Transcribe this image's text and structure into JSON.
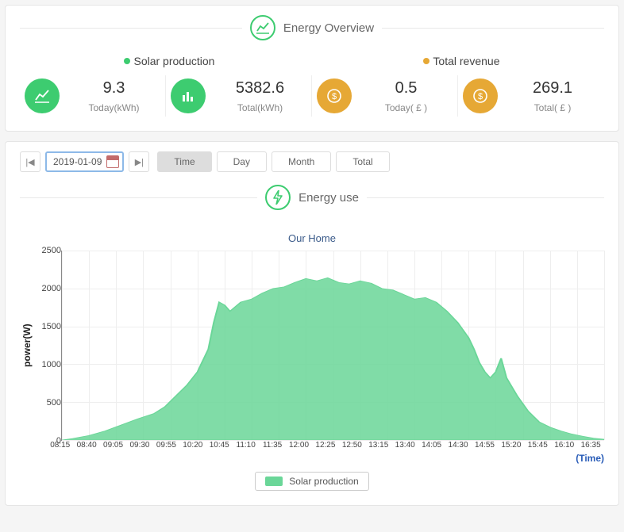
{
  "overview": {
    "title": "Energy Overview",
    "solar_label": "Solar production",
    "revenue_label": "Total revenue",
    "metrics": [
      {
        "value": "9.3",
        "label": "Today(kWh)",
        "color": "green",
        "icon": "chart-up"
      },
      {
        "value": "5382.6",
        "label": "Total(kWh)",
        "color": "green",
        "icon": "bars"
      },
      {
        "value": "0.5",
        "label": "Today( £ )",
        "color": "orange",
        "icon": "dollar"
      },
      {
        "value": "269.1",
        "label": "Total( £ )",
        "color": "orange",
        "icon": "dollar"
      }
    ]
  },
  "controls": {
    "date": "2019-01-09",
    "tabs": {
      "time": "Time",
      "day": "Day",
      "month": "Month",
      "total": "Total"
    },
    "active_tab": "time"
  },
  "energy_use": {
    "title": "Energy use",
    "chart_title": "Our Home",
    "y_axis_label": "power(W)",
    "x_axis_suffix": "(Time)",
    "legend_label": "Solar production",
    "chart": {
      "type": "area",
      "ylim": [
        0,
        2500
      ],
      "ytick_step": 500,
      "yticks": [
        0,
        500,
        1000,
        1500,
        2000,
        2500
      ],
      "xticks": [
        "08:15",
        "08:40",
        "09:05",
        "09:30",
        "09:55",
        "10:20",
        "10:45",
        "11:10",
        "11:35",
        "12:00",
        "12:25",
        "12:50",
        "13:15",
        "13:40",
        "14:05",
        "14:30",
        "14:55",
        "15:20",
        "15:45",
        "16:10",
        "16:35"
      ],
      "series_color": "#6ad698",
      "fill_opacity": 0.85,
      "grid_color": "#eeeeee",
      "axis_color": "#888888",
      "background_color": "#ffffff",
      "tick_fontsize": 10,
      "title_color": "#3b5b8a",
      "data": [
        [
          0,
          0
        ],
        [
          2,
          20
        ],
        [
          5,
          60
        ],
        [
          8,
          120
        ],
        [
          11,
          200
        ],
        [
          14,
          280
        ],
        [
          17,
          350
        ],
        [
          19,
          440
        ],
        [
          21,
          580
        ],
        [
          23,
          720
        ],
        [
          25,
          900
        ],
        [
          27,
          1200
        ],
        [
          28,
          1550
        ],
        [
          29,
          1820
        ],
        [
          30,
          1780
        ],
        [
          31,
          1700
        ],
        [
          33,
          1820
        ],
        [
          35,
          1860
        ],
        [
          37,
          1940
        ],
        [
          39,
          2000
        ],
        [
          41,
          2020
        ],
        [
          43,
          2080
        ],
        [
          45,
          2130
        ],
        [
          47,
          2100
        ],
        [
          49,
          2140
        ],
        [
          51,
          2080
        ],
        [
          53,
          2060
        ],
        [
          55,
          2100
        ],
        [
          57,
          2070
        ],
        [
          59,
          2000
        ],
        [
          61,
          1980
        ],
        [
          63,
          1920
        ],
        [
          65,
          1860
        ],
        [
          67,
          1880
        ],
        [
          69,
          1820
        ],
        [
          71,
          1700
        ],
        [
          73,
          1550
        ],
        [
          75,
          1350
        ],
        [
          76,
          1200
        ],
        [
          77,
          1020
        ],
        [
          78,
          900
        ],
        [
          79,
          820
        ],
        [
          80,
          900
        ],
        [
          81,
          1080
        ],
        [
          82,
          820
        ],
        [
          84,
          580
        ],
        [
          86,
          380
        ],
        [
          88,
          240
        ],
        [
          90,
          170
        ],
        [
          92,
          120
        ],
        [
          94,
          80
        ],
        [
          96,
          50
        ],
        [
          98,
          25
        ],
        [
          100,
          10
        ]
      ]
    }
  }
}
